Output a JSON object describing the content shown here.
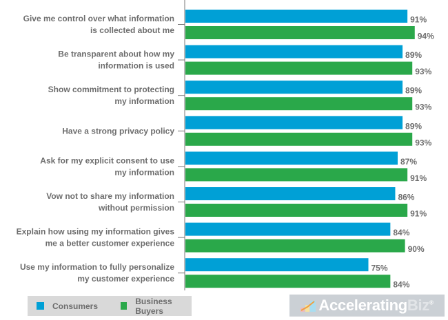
{
  "chart_data": {
    "type": "bar",
    "orientation": "horizontal",
    "categories": [
      [
        "Give me control over what information",
        "is collected about me"
      ],
      [
        "Be transparent about how my",
        "information is used"
      ],
      [
        "Show commitment to protecting",
        "my information"
      ],
      [
        "Have a strong privacy policy"
      ],
      [
        "Ask for my explicit consent to use",
        "my information"
      ],
      [
        "Vow not to share my information",
        "without permission"
      ],
      [
        "Explain how using my information gives",
        "me a better customer experience"
      ],
      [
        "Use my information to fully personalize",
        "my customer experience"
      ]
    ],
    "series": [
      {
        "name": "Consumers",
        "color": "#00a0d6",
        "values": [
          91,
          89,
          89,
          89,
          87,
          86,
          84,
          75
        ]
      },
      {
        "name": "Business Buyers",
        "color": "#2aa84a",
        "values": [
          94,
          93,
          93,
          93,
          91,
          91,
          90,
          84
        ]
      }
    ],
    "value_suffix": "%",
    "xlim": [
      0,
      100
    ],
    "grid": false,
    "legend_position": "bottom-left"
  },
  "legend": {
    "items": [
      "Consumers",
      "Business Buyers"
    ]
  },
  "logo": {
    "main": "Accelerating",
    "accent": "Biz",
    "mark": "®"
  }
}
